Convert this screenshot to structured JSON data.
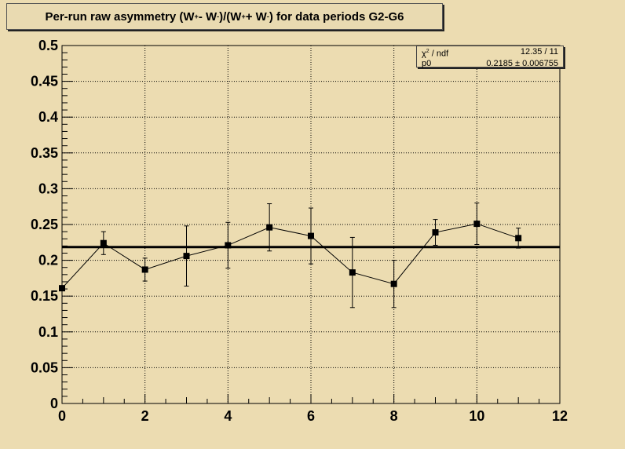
{
  "chart_data": {
    "type": "scatter",
    "title": {
      "p1": "Per-run raw asymmetry (W",
      "s1": "+",
      "p2": " - W",
      "s2": "-",
      "p3": ")/(W",
      "s3": "+",
      "p4": " + W",
      "s4": "-",
      "p5": ") for data periods G2-G6"
    },
    "xlim": [
      0,
      12
    ],
    "ylim": [
      0,
      0.5
    ],
    "x_ticks": [
      "0",
      "2",
      "4",
      "6",
      "8",
      "10",
      "12"
    ],
    "y_ticks": [
      "0",
      "0.05",
      "0.1",
      "0.15",
      "0.2",
      "0.25",
      "0.3",
      "0.35",
      "0.4",
      "0.45",
      "0.5"
    ],
    "grid": true,
    "points": {
      "x": [
        0,
        1,
        2,
        3,
        4,
        5,
        6,
        7,
        8,
        9,
        10,
        11
      ],
      "y": [
        0.161,
        0.224,
        0.187,
        0.206,
        0.221,
        0.246,
        0.234,
        0.183,
        0.167,
        0.239,
        0.251,
        0.231
      ],
      "yerr": [
        0.0,
        0.016,
        0.016,
        0.042,
        0.032,
        0.033,
        0.039,
        0.049,
        0.033,
        0.018,
        0.029,
        0.014
      ]
    },
    "fit": {
      "p0": 0.2185
    },
    "stats": {
      "row1_label_pre": "χ",
      "row1_label_sup": "2",
      "row1_label_post": " / ndf",
      "row1_value": "12.35 / 11",
      "row2_label": "p0",
      "row2_value": "0.2185 ± 0.006755"
    },
    "colors": {
      "background": "#ecdcb1",
      "marker": "#000000",
      "fit": "#000000"
    }
  }
}
